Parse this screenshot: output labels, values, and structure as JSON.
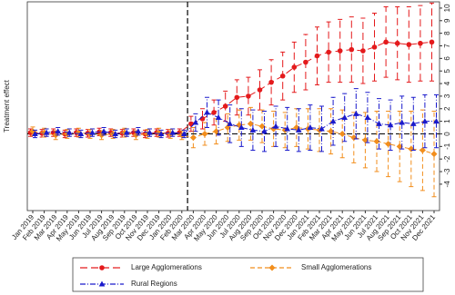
{
  "chart_data": {
    "type": "errorbar-line",
    "ylabel": "Treatment effect",
    "categories": [
      "Jan 2019",
      "Feb 2019",
      "Mar 2019",
      "Apr 2019",
      "May 2019",
      "Jun 2019",
      "Jul 2019",
      "Aug 2019",
      "Sep 2019",
      "Oct 2019",
      "Nov 2019",
      "Dec 2019",
      "Jan 2020",
      "Feb 2020",
      "Mar 2020",
      "Apr 2020",
      "May 2020",
      "Jun 2020",
      "Jul 2020",
      "Aug 2020",
      "Sep 2020",
      "Oct 2020",
      "Nov 2020",
      "Dec 2020",
      "Jan 2021",
      "Feb 2021",
      "Mar 2021",
      "Apr 2021",
      "May 2021",
      "Jun 2021",
      "Jul 2021",
      "Aug 2021",
      "Sep 2021",
      "Oct 2021",
      "Nov 2021",
      "Dec 2021"
    ],
    "vline": "Mar 2020",
    "ylim": [
      -6.1,
      10.5
    ],
    "yticks": [
      -4,
      -3,
      -2,
      -1,
      0,
      1,
      2,
      3,
      4,
      5,
      6,
      7,
      8,
      9,
      10
    ],
    "series": [
      {
        "name": "Large Agglomerations",
        "color": "#e41a1c",
        "marker": "circle",
        "dash": "8,4",
        "values": [
          0.1,
          0.05,
          0.1,
          0.0,
          0.1,
          0.05,
          0.15,
          0.1,
          0.05,
          0.1,
          0.0,
          0.1,
          0.05,
          0.1,
          0.8,
          1.2,
          1.7,
          2.2,
          2.9,
          3.0,
          3.5,
          4.1,
          4.6,
          5.3,
          5.7,
          6.2,
          6.5,
          6.6,
          6.7,
          6.6,
          6.9,
          7.3,
          7.2,
          7.1,
          7.2,
          7.3
        ],
        "errors": [
          0.3,
          0.3,
          0.3,
          0.3,
          0.3,
          0.3,
          0.3,
          0.3,
          0.3,
          0.3,
          0.3,
          0.3,
          0.3,
          0.3,
          0.6,
          0.8,
          1.0,
          1.2,
          1.4,
          1.5,
          1.6,
          1.8,
          1.9,
          2.0,
          2.2,
          2.3,
          2.4,
          2.5,
          2.6,
          2.6,
          2.7,
          2.8,
          2.9,
          3.0,
          3.0,
          3.1
        ]
      },
      {
        "name": "Small Agglomerations",
        "color": "#f28e1c",
        "marker": "diamond",
        "dash": "5,3",
        "values": [
          0.2,
          0.1,
          -0.1,
          0.0,
          0.1,
          0.0,
          -0.1,
          0.0,
          0.1,
          -0.1,
          0.0,
          0.1,
          0.0,
          -0.1,
          -0.3,
          0.0,
          0.2,
          0.5,
          0.7,
          0.8,
          0.6,
          0.4,
          0.3,
          0.5,
          0.4,
          0.3,
          0.2,
          0.0,
          -0.3,
          -0.5,
          -0.6,
          -0.8,
          -1.0,
          -1.2,
          -1.3,
          -1.6
        ],
        "errors": [
          0.35,
          0.35,
          0.35,
          0.35,
          0.35,
          0.35,
          0.35,
          0.35,
          0.35,
          0.35,
          0.35,
          0.35,
          0.35,
          0.35,
          0.8,
          0.9,
          1.0,
          1.1,
          1.2,
          1.3,
          1.3,
          1.4,
          1.4,
          1.5,
          1.6,
          1.7,
          1.8,
          1.9,
          2.0,
          2.2,
          2.4,
          2.6,
          2.8,
          3.0,
          3.2,
          3.4
        ]
      },
      {
        "name": "Rural Regions",
        "color": "#1a1acc",
        "marker": "triangle",
        "dash": "6,2,1,2",
        "values": [
          0.0,
          0.1,
          0.2,
          0.1,
          0.0,
          0.1,
          0.2,
          0.0,
          0.1,
          0.2,
          0.1,
          0.0,
          0.1,
          0.0,
          0.9,
          1.7,
          1.3,
          0.8,
          0.5,
          0.3,
          0.2,
          0.6,
          0.4,
          0.3,
          0.5,
          0.4,
          1.0,
          1.3,
          1.6,
          1.3,
          0.8,
          0.7,
          0.9,
          0.8,
          1.0,
          1.0
        ],
        "errors": [
          0.3,
          0.3,
          0.3,
          0.3,
          0.3,
          0.3,
          0.3,
          0.3,
          0.3,
          0.3,
          0.3,
          0.3,
          0.3,
          0.3,
          0.7,
          1.2,
          1.4,
          1.5,
          1.5,
          1.6,
          1.6,
          1.6,
          1.7,
          1.7,
          1.8,
          1.8,
          1.9,
          1.9,
          2.0,
          2.0,
          2.0,
          2.0,
          2.1,
          2.1,
          2.1,
          2.1
        ]
      }
    ]
  }
}
